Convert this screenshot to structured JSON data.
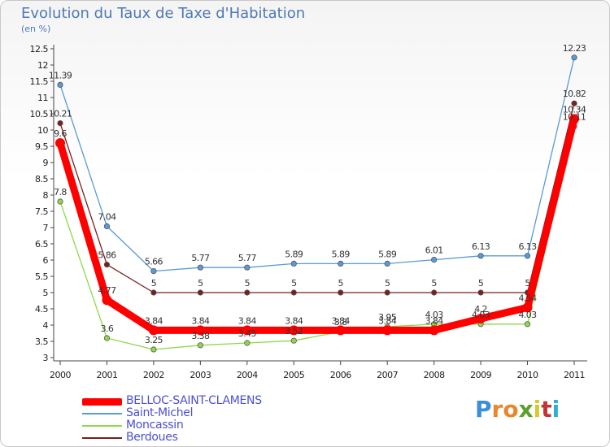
{
  "title": "Evolution du Taux de Taxe d'Habitation",
  "subtitle": "(en %)",
  "logo": {
    "text": "Proxiti",
    "colors": [
      "#3b8fd6",
      "#e8872b",
      "#e8872b",
      "#5aa02c",
      "#d6ca2b",
      "#c43434",
      "#2bb0d6"
    ]
  },
  "chart_data": {
    "type": "line",
    "x": [
      "2000",
      "2001",
      "2002",
      "2003",
      "2004",
      "2005",
      "2006",
      "2007",
      "2008",
      "2009",
      "2010",
      "2011"
    ],
    "ylim": [
      3,
      12.5
    ],
    "yticks": [
      "3",
      "3.5",
      "4",
      "4.5",
      "5",
      "5.5",
      "6",
      "6.5",
      "7",
      "7.5",
      "8",
      "8.5",
      "9",
      "9.5",
      "10",
      "10.5",
      "11",
      "11.5",
      "12",
      "12.5"
    ],
    "legend_position": "bottom-left",
    "series": [
      {
        "name": "BELLOC-SAINT-CLAMENS",
        "color": "#ff0000",
        "values": [
          9.6,
          4.77,
          3.84,
          3.84,
          3.84,
          3.84,
          3.84,
          3.84,
          3.84,
          4.2,
          4.54,
          10.34
        ],
        "labels": [
          "9.6",
          "4.77",
          "3.84",
          "3.84",
          "3.84",
          "3.84",
          "3.84",
          "3.84",
          "3.84",
          "4.2",
          "4.54",
          "10.34"
        ]
      },
      {
        "name": "Saint-Michel",
        "color": "#5a9ad6",
        "values": [
          11.39,
          7.04,
          5.66,
          5.77,
          5.77,
          5.89,
          5.89,
          5.89,
          6.01,
          6.13,
          6.13,
          12.23
        ],
        "labels": [
          "11.39",
          "7.04",
          "5.66",
          "5.77",
          "5.77",
          "5.89",
          "5.89",
          "5.89",
          "6.01",
          "6.13",
          "6.13",
          "12.23"
        ]
      },
      {
        "name": "Moncassin",
        "color": "#8ed84a",
        "values": [
          7.8,
          3.6,
          3.25,
          3.38,
          3.45,
          3.52,
          3.8,
          3.95,
          4.03,
          4.03,
          4.03,
          10.11
        ],
        "labels": [
          "7.8",
          "3.6",
          "3.25",
          "3.38",
          "3.45",
          "3.52",
          "3.8",
          "3.95",
          "4.03",
          "4.03",
          "4.03",
          "10.11"
        ]
      },
      {
        "name": "Berdoues",
        "color": "#7a1f1f",
        "values": [
          10.21,
          5.86,
          5,
          5,
          5,
          5,
          5,
          5,
          5,
          5,
          5,
          10.82
        ],
        "labels": [
          "10.21",
          "5.86",
          "5",
          "5",
          "5",
          "5",
          "5",
          "5",
          "5",
          "5",
          "5",
          "10.82"
        ]
      }
    ]
  }
}
